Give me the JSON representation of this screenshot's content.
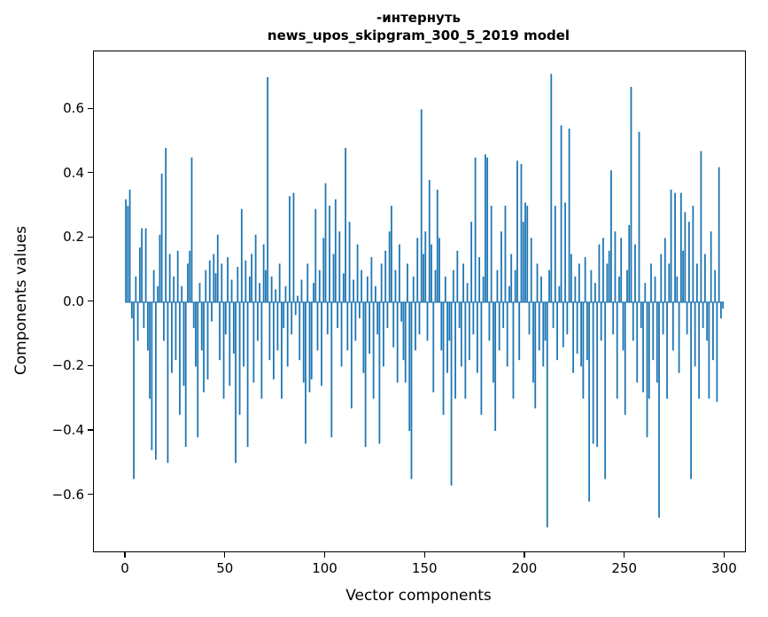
{
  "figure": {
    "title_line1": "-интернуть",
    "title_line2": "news_upos_skipgram_300_5_2019 model",
    "xlabel": "Vector components",
    "ylabel": "Components values"
  },
  "chart_data": {
    "type": "bar",
    "title": "-интернуть — news_upos_skipgram_300_5_2019 model",
    "xlabel": "Vector components",
    "ylabel": "Components values",
    "legend": null,
    "grid": false,
    "bar_color": "#1f77b4",
    "bar_width": 0.8,
    "x_start": 0,
    "xlim": [
      -16,
      310
    ],
    "ylim": [
      -0.775,
      0.78
    ],
    "xticks": [
      0,
      50,
      100,
      150,
      200,
      250,
      300
    ],
    "yticks": [
      -0.6,
      -0.4,
      -0.2,
      0.0,
      0.2,
      0.4,
      0.6
    ],
    "values": [
      0.32,
      0.3,
      0.35,
      -0.05,
      -0.55,
      0.08,
      -0.12,
      0.17,
      0.23,
      -0.08,
      0.23,
      -0.15,
      -0.3,
      -0.46,
      0.1,
      -0.49,
      0.05,
      0.21,
      0.4,
      -0.12,
      0.48,
      -0.5,
      0.15,
      -0.22,
      0.08,
      -0.18,
      0.16,
      -0.35,
      0.05,
      -0.26,
      -0.45,
      0.12,
      0.16,
      0.45,
      -0.08,
      -0.2,
      -0.42,
      0.06,
      -0.15,
      -0.28,
      0.1,
      -0.24,
      0.13,
      -0.06,
      0.15,
      0.09,
      0.21,
      -0.18,
      0.12,
      -0.3,
      -0.1,
      0.14,
      -0.26,
      0.07,
      -0.16,
      -0.5,
      0.11,
      -0.35,
      0.29,
      -0.2,
      0.13,
      -0.45,
      0.08,
      0.15,
      -0.25,
      0.21,
      -0.12,
      0.06,
      -0.3,
      0.18,
      0.1,
      0.7,
      -0.18,
      0.08,
      -0.24,
      0.04,
      -0.15,
      0.12,
      -0.3,
      -0.08,
      0.05,
      -0.2,
      0.33,
      -0.1,
      0.34,
      -0.04,
      0.02,
      -0.18,
      0.07,
      -0.25,
      -0.44,
      0.12,
      -0.28,
      -0.24,
      0.06,
      0.29,
      -0.15,
      0.1,
      -0.26,
      0.2,
      0.37,
      -0.1,
      0.3,
      -0.42,
      0.15,
      0.32,
      -0.08,
      0.22,
      -0.2,
      0.09,
      0.48,
      -0.15,
      0.25,
      -0.33,
      0.07,
      -0.12,
      0.18,
      -0.05,
      0.1,
      -0.22,
      -0.45,
      0.08,
      -0.16,
      0.14,
      -0.3,
      0.05,
      -0.1,
      -0.44,
      0.12,
      -0.2,
      0.16,
      -0.08,
      0.22,
      0.3,
      -0.14,
      0.1,
      -0.25,
      0.18,
      -0.06,
      -0.18,
      -0.25,
      0.12,
      -0.4,
      -0.55,
      0.08,
      -0.15,
      0.2,
      -0.1,
      0.6,
      0.15,
      0.22,
      -0.12,
      0.38,
      0.18,
      -0.28,
      0.1,
      0.35,
      0.2,
      -0.15,
      -0.35,
      0.08,
      -0.22,
      -0.12,
      -0.57,
      0.1,
      -0.3,
      0.16,
      -0.08,
      -0.2,
      0.12,
      -0.3,
      0.06,
      -0.18,
      0.25,
      -0.1,
      0.45,
      -0.22,
      0.14,
      -0.35,
      0.08,
      0.46,
      0.45,
      -0.12,
      0.3,
      -0.25,
      -0.4,
      0.1,
      -0.15,
      0.22,
      -0.08,
      0.3,
      -0.2,
      0.05,
      0.15,
      -0.3,
      0.1,
      0.44,
      -0.18,
      0.43,
      0.25,
      0.31,
      0.3,
      -0.1,
      0.2,
      -0.25,
      -0.33,
      0.12,
      -0.15,
      0.08,
      -0.2,
      -0.12,
      -0.7,
      0.1,
      0.71,
      -0.08,
      0.3,
      -0.18,
      0.05,
      0.55,
      -0.14,
      0.31,
      -0.1,
      0.54,
      0.15,
      -0.22,
      0.08,
      -0.16,
      0.12,
      -0.2,
      -0.3,
      0.14,
      -0.18,
      -0.62,
      0.1,
      -0.44,
      0.06,
      -0.45,
      0.18,
      -0.12,
      0.2,
      -0.55,
      0.12,
      0.16,
      0.41,
      -0.1,
      0.22,
      -0.3,
      0.08,
      0.2,
      -0.15,
      -0.35,
      0.1,
      0.24,
      0.67,
      -0.12,
      0.18,
      -0.25,
      0.53,
      -0.08,
      -0.28,
      0.06,
      -0.42,
      -0.3,
      0.12,
      -0.18,
      0.08,
      -0.25,
      -0.67,
      0.15,
      -0.1,
      0.2,
      -0.3,
      0.12,
      0.35,
      -0.15,
      0.34,
      0.08,
      -0.22,
      0.34,
      0.16,
      0.28,
      -0.1,
      0.25,
      -0.55,
      0.3,
      -0.2,
      0.12,
      -0.3,
      0.47,
      -0.08,
      0.15,
      -0.12,
      -0.3,
      0.22,
      -0.18,
      0.1,
      -0.31,
      0.42,
      -0.05,
      -0.02
    ]
  }
}
